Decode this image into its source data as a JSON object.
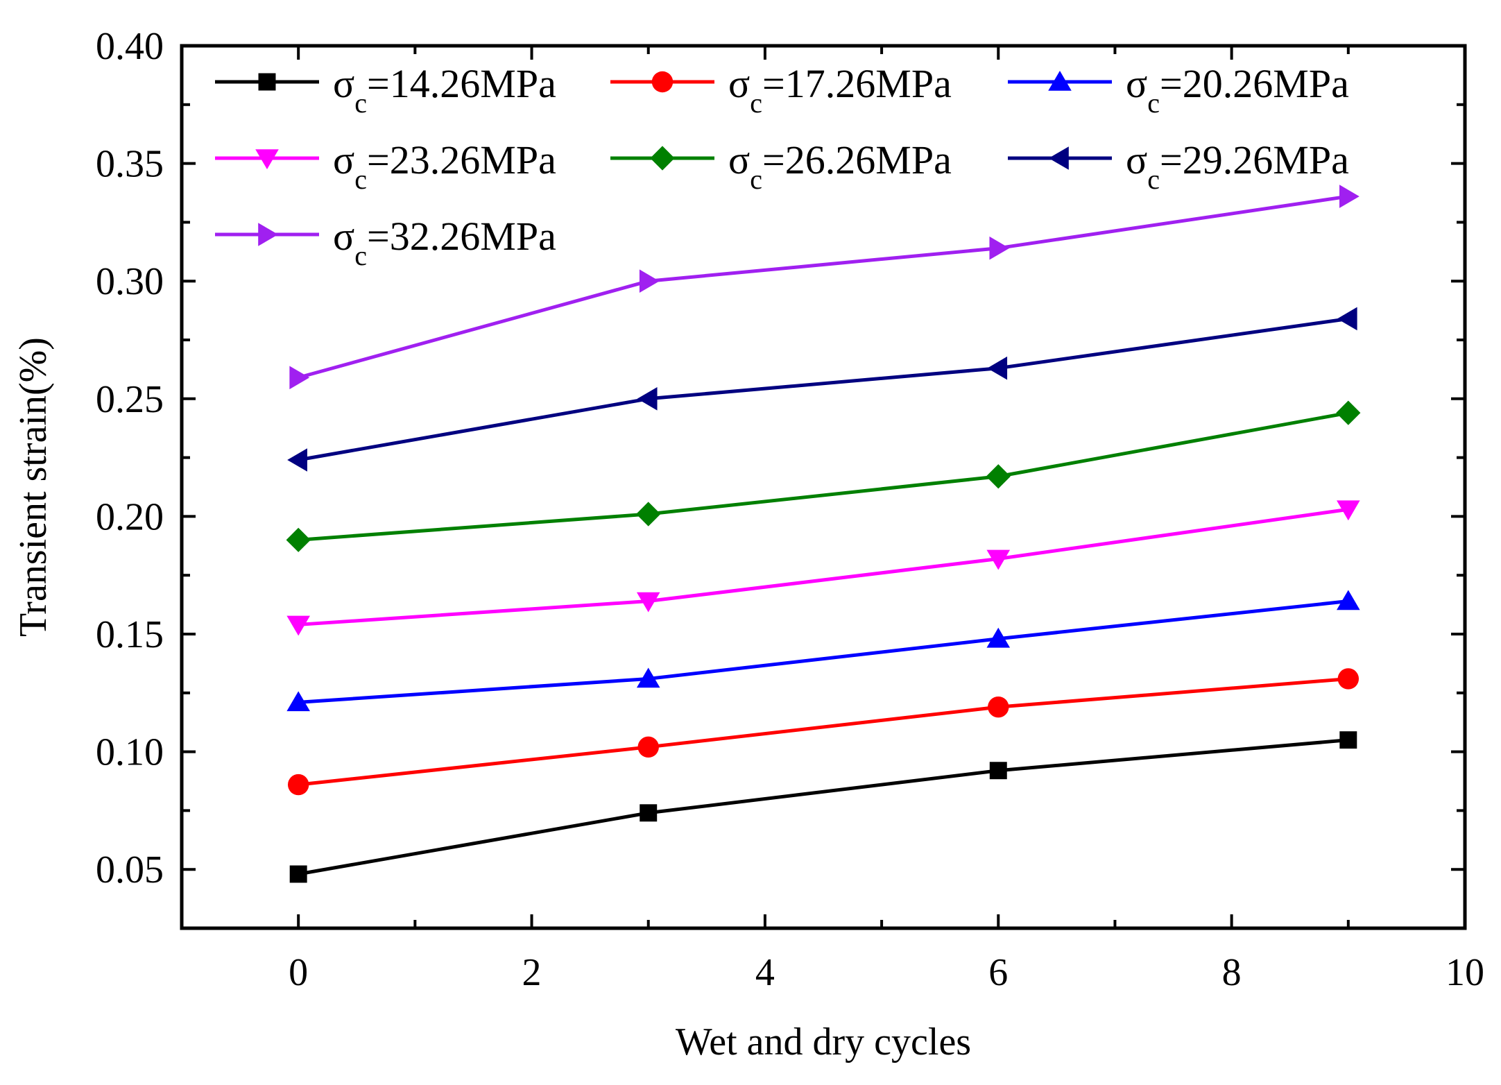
{
  "chart_data": {
    "type": "line",
    "title": "",
    "xlabel": "Wet and dry cycles",
    "ylabel": "Transient strain(%)",
    "xlim": [
      -1,
      10
    ],
    "ylim": [
      0.025,
      0.4
    ],
    "xticks": [
      0,
      2,
      4,
      6,
      8,
      10
    ],
    "xtick_labels": [
      "0",
      "2",
      "4",
      "6",
      "8",
      "10"
    ],
    "yticks": [
      0.05,
      0.1,
      0.15,
      0.2,
      0.25,
      0.3,
      0.35,
      0.4
    ],
    "ytick_labels": [
      "0.05",
      "0.10",
      "0.15",
      "0.20",
      "0.25",
      "0.30",
      "0.35",
      "0.40"
    ],
    "grid": false,
    "legend_position": "top",
    "x": [
      0,
      3,
      6,
      9
    ],
    "series": [
      {
        "name": "σc=14.26MPa",
        "symbol": "σ",
        "subscript": "c",
        "rest": "=14.26MPa",
        "color": "#000000",
        "marker": "square",
        "values": [
          0.048,
          0.074,
          0.092,
          0.105
        ]
      },
      {
        "name": "σc=17.26MPa",
        "symbol": "σ",
        "subscript": "c",
        "rest": "=17.26MPa",
        "color": "#ff0000",
        "marker": "circle",
        "values": [
          0.086,
          0.102,
          0.119,
          0.131
        ]
      },
      {
        "name": "σc=20.26MPa",
        "symbol": "σ",
        "subscript": "c",
        "rest": "=20.26MPa",
        "color": "#0000ff",
        "marker": "triangle-up",
        "values": [
          0.121,
          0.131,
          0.148,
          0.164
        ]
      },
      {
        "name": "σc=23.26MPa",
        "symbol": "σ",
        "subscript": "c",
        "rest": "=23.26MPa",
        "color": "#ff00ff",
        "marker": "triangle-down",
        "values": [
          0.154,
          0.164,
          0.182,
          0.203
        ]
      },
      {
        "name": "σc=26.26MPa",
        "symbol": "σ",
        "subscript": "c",
        "rest": "=26.26MPa",
        "color": "#008000",
        "marker": "diamond",
        "values": [
          0.19,
          0.201,
          0.217,
          0.244
        ]
      },
      {
        "name": "σc=29.26MPa",
        "symbol": "σ",
        "subscript": "c",
        "rest": "=29.26MPa",
        "color": "#000080",
        "marker": "triangle-left",
        "values": [
          0.224,
          0.25,
          0.263,
          0.284
        ]
      },
      {
        "name": "σc=32.26MPa",
        "symbol": "σ",
        "subscript": "c",
        "rest": "=32.26MPa",
        "color": "#a020f0",
        "marker": "triangle-right",
        "values": [
          0.259,
          0.3,
          0.314,
          0.336
        ]
      }
    ]
  }
}
